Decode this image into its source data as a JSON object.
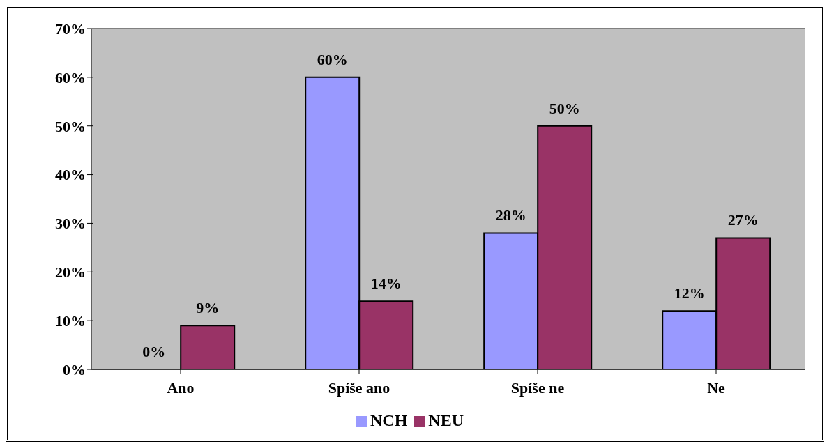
{
  "chart_data": {
    "type": "bar",
    "categories": [
      "Ano",
      "Spíše ano",
      "Spíše ne",
      "Ne"
    ],
    "series": [
      {
        "name": "NCH",
        "color": "#9999ff",
        "values": [
          0,
          60,
          28,
          12
        ],
        "value_labels": [
          "0%",
          "60%",
          "28%",
          "12%"
        ]
      },
      {
        "name": "NEU",
        "color": "#993366",
        "values": [
          9,
          14,
          50,
          27
        ],
        "value_labels": [
          "9%",
          "14%",
          "50%",
          "27%"
        ]
      }
    ],
    "ylim": [
      0,
      70
    ],
    "yticks": [
      {
        "value": 0,
        "label": "0%"
      },
      {
        "value": 10,
        "label": "10%"
      },
      {
        "value": 20,
        "label": "20%"
      },
      {
        "value": 30,
        "label": "30%"
      },
      {
        "value": 40,
        "label": "40%"
      },
      {
        "value": 50,
        "label": "50%"
      },
      {
        "value": 60,
        "label": "60%"
      },
      {
        "value": 70,
        "label": "70%"
      }
    ],
    "grid": "y",
    "legend": "bottom"
  }
}
